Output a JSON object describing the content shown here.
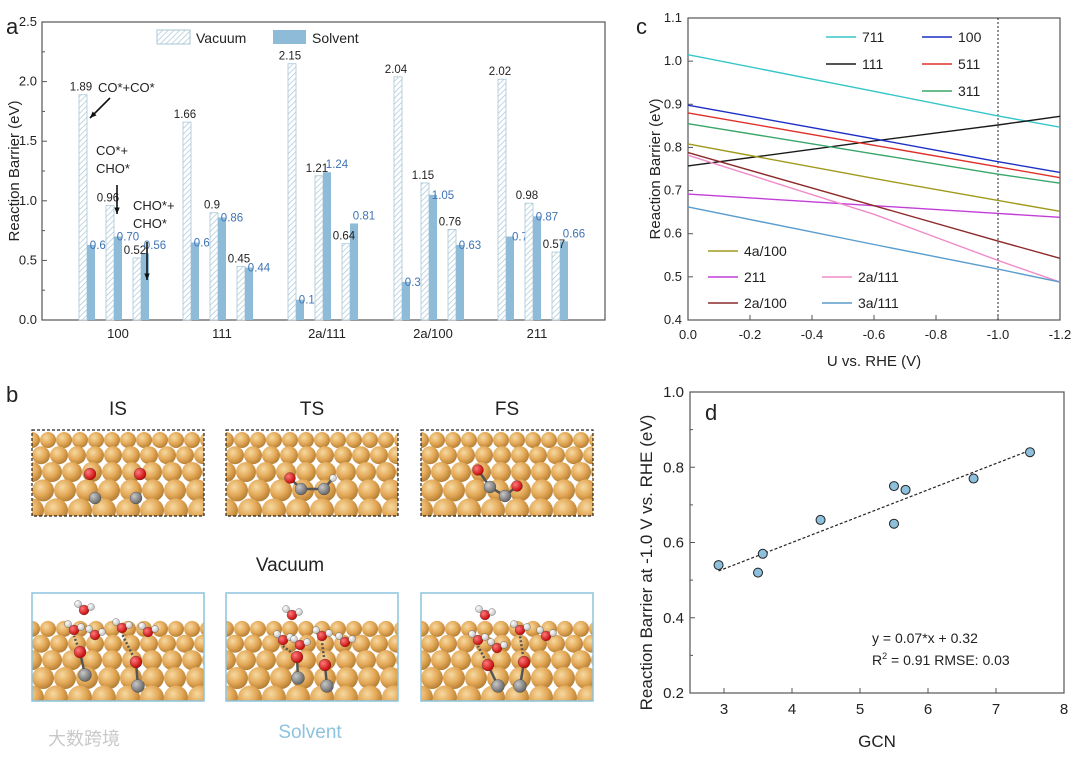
{
  "colors": {
    "vacuum_hatch": "#a8c6d6",
    "solvent": "#8dbbd8",
    "solvent_label": "#3f73b4",
    "solvent_caption": "#8cc3de",
    "copper": "#e3a857",
    "oxygen": "#e01010",
    "carbon": "#8c8c8c",
    "hydrogen": "#ffffff",
    "scatter": "#8dc0dc"
  },
  "panels": {
    "a": "a",
    "b": "b",
    "c": "c",
    "d": "d"
  },
  "panel_b": {
    "states": [
      "IS",
      "TS",
      "FS"
    ],
    "vacuum_label": "Vacuum",
    "solvent_label": "Solvent"
  },
  "watermark": "大数跨境",
  "chart_data": [
    {
      "type": "bar",
      "title": "",
      "xlabel": "",
      "ylabel": "Reaction Barrier (eV)",
      "ylim": [
        0,
        2.5
      ],
      "yticks": [
        "0.0",
        "0.5",
        "1.0",
        "1.5",
        "2.0",
        "2.5"
      ],
      "categories": [
        "100",
        "111",
        "2a/111",
        "2a/100",
        "211"
      ],
      "sub_steps": [
        "CO*+CO*",
        "CO*+CHO*",
        "CHO*+CHO*"
      ],
      "legend": [
        "Vacuum",
        "Solvent"
      ],
      "legend_position": "top",
      "series": [
        {
          "name": "Vacuum",
          "values": [
            [
              1.89,
              0.96,
              0.52
            ],
            [
              1.66,
              0.9,
              0.45
            ],
            [
              2.15,
              1.21,
              0.64
            ],
            [
              2.04,
              1.15,
              0.76
            ],
            [
              2.02,
              0.98,
              0.57
            ]
          ],
          "labels": [
            [
              "1.89",
              "0.96",
              "0.52"
            ],
            [
              "1.66",
              "0.9",
              "0.45"
            ],
            [
              "2.15",
              "1.21",
              "0.64"
            ],
            [
              "2.04",
              "1.15",
              "0.76"
            ],
            [
              "2.02",
              "0.98",
              "0.57"
            ]
          ]
        },
        {
          "name": "Solvent",
          "values": [
            [
              0.63,
              0.7,
              0.56
            ],
            [
              0.65,
              0.86,
              0.44
            ],
            [
              0.17,
              1.24,
              0.81
            ],
            [
              0.32,
              1.05,
              0.63
            ],
            [
              0.7,
              0.87,
              0.66
            ]
          ],
          "labels": [
            [
              "0.63",
              "0.70",
              "0.56"
            ],
            [
              "0.65",
              "0.86",
              "0.44"
            ],
            [
              "0.17",
              "1.24",
              "0.81"
            ],
            [
              "0.32",
              "1.05",
              "0.63"
            ],
            [
              "0.7",
              "0.87",
              "0.66"
            ]
          ]
        }
      ],
      "annotations": [
        {
          "lines": [
            "CO*+CO*"
          ]
        },
        {
          "lines": [
            "CO*+",
            "CHO*"
          ]
        },
        {
          "lines": [
            "CHO*+",
            "CHO*"
          ]
        }
      ]
    },
    {
      "type": "line",
      "xlabel": "U vs. RHE (V)",
      "ylabel": "Reaction Barrier (eV)",
      "xlim": [
        0,
        -1.2
      ],
      "ylim": [
        0.4,
        1.1
      ],
      "xticks": [
        "0.0",
        "-0.2",
        "-0.4",
        "-0.6",
        "-0.8",
        "-1.0",
        "-1.2"
      ],
      "yticks": [
        "0.4",
        "0.5",
        "0.6",
        "0.7",
        "0.8",
        "0.9",
        "1.0",
        "1.1"
      ],
      "reference_line_x": -1.0,
      "x": [
        0,
        -0.6,
        -1.0,
        -1.2
      ],
      "series": [
        {
          "name": "711",
          "color": "#36c6c8",
          "values": [
            1.015,
            0.93,
            0.873,
            0.847
          ]
        },
        {
          "name": "111",
          "color": "#1a1a1a",
          "values": [
            0.757,
            0.815,
            0.852,
            0.872
          ]
        },
        {
          "name": "100",
          "color": "#1c2fc4",
          "values": [
            0.898,
            0.82,
            0.767,
            0.742
          ]
        },
        {
          "name": "511",
          "color": "#e0302a",
          "values": [
            0.88,
            0.805,
            0.755,
            0.73
          ]
        },
        {
          "name": "311",
          "color": "#3aa66a",
          "values": [
            0.855,
            0.785,
            0.738,
            0.717
          ]
        },
        {
          "name": "4a/100",
          "color": "#a09a1c",
          "values": [
            0.808,
            0.728,
            0.677,
            0.652
          ]
        },
        {
          "name": "211",
          "color": "#c23ed8",
          "values": [
            0.692,
            0.665,
            0.647,
            0.638
          ]
        },
        {
          "name": "2a/111",
          "color": "#f08cc8",
          "values": [
            0.782,
            0.645,
            0.538,
            0.488
          ]
        },
        {
          "name": "2a/100",
          "color": "#8c2a2a",
          "values": [
            0.788,
            0.665,
            0.583,
            0.543
          ]
        },
        {
          "name": "3a/111",
          "color": "#5a9ccc",
          "values": [
            0.662,
            0.575,
            0.518,
            0.488
          ]
        }
      ]
    },
    {
      "type": "scatter",
      "xlabel": "GCN",
      "ylabel": "Reaction Barrier at -1.0 V vs. RHE (eV)",
      "xlim": [
        2.5,
        8
      ],
      "ylim": [
        0.2,
        1.0
      ],
      "xticks": [
        "3",
        "4",
        "5",
        "6",
        "7",
        "8"
      ],
      "yticks": [
        "0.2",
        "0.4",
        "0.6",
        "0.8",
        "1.0"
      ],
      "points": [
        [
          2.92,
          0.54
        ],
        [
          3.5,
          0.52
        ],
        [
          3.57,
          0.57
        ],
        [
          4.42,
          0.66
        ],
        [
          5.5,
          0.75
        ],
        [
          5.67,
          0.74
        ],
        [
          5.5,
          0.65
        ],
        [
          6.67,
          0.77
        ],
        [
          7.5,
          0.84
        ]
      ],
      "fit": {
        "slope": 0.07,
        "intercept": 0.32,
        "x_range": [
          2.92,
          7.5
        ]
      },
      "equation": "y = 0.07*x + 0.32",
      "stats_prefix": "R",
      "stats_sup": "2",
      "stats_rest": " = 0.91 RMSE: 0.03"
    }
  ]
}
